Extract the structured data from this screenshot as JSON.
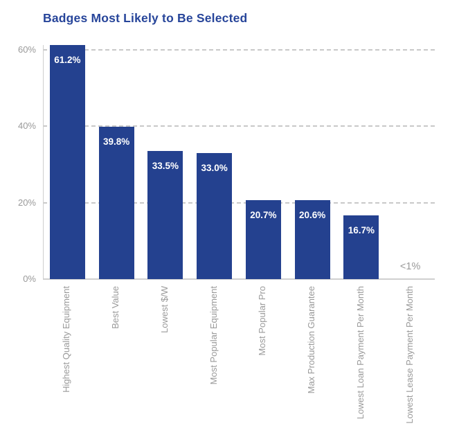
{
  "chart_data": {
    "type": "bar",
    "title": "Badges Most Likely to Be Selected",
    "categories": [
      "Highest Quality Equipment",
      "Best Value",
      "Lowest $/W",
      "Most Popular Equipment",
      "Most Popular Pro",
      "Max Production Guarantee",
      "Lowest Loan Payment Per Month",
      "Lowest Lease Payment Per Month"
    ],
    "values": [
      61.2,
      39.8,
      33.5,
      33.0,
      20.7,
      20.6,
      16.7,
      null
    ],
    "bar_labels": [
      "61.2%",
      "39.8%",
      "33.5%",
      "33.0%",
      "20.7%",
      "20.6%",
      "16.7%",
      "<1%"
    ],
    "xlabel": "",
    "ylabel": "",
    "ylim": [
      0,
      60
    ],
    "ytick_values": [
      0,
      20,
      40,
      60
    ],
    "ytick_labels": [
      "0%",
      "20%",
      "40%",
      "60%"
    ],
    "grid": "dashed horizontal lines at 20%, 40%, 60%",
    "legend": "none"
  },
  "colors": {
    "bar": "#24418F",
    "title": "#27459A",
    "tick_text": "#999999",
    "xlabel_text": "#9A9A9A",
    "value_text": "#FFFFFF",
    "no_bar_text": "#999999",
    "gridline": "#C8C8C8",
    "axis_line": "#CFCFCF",
    "background": "#FFFFFF"
  }
}
